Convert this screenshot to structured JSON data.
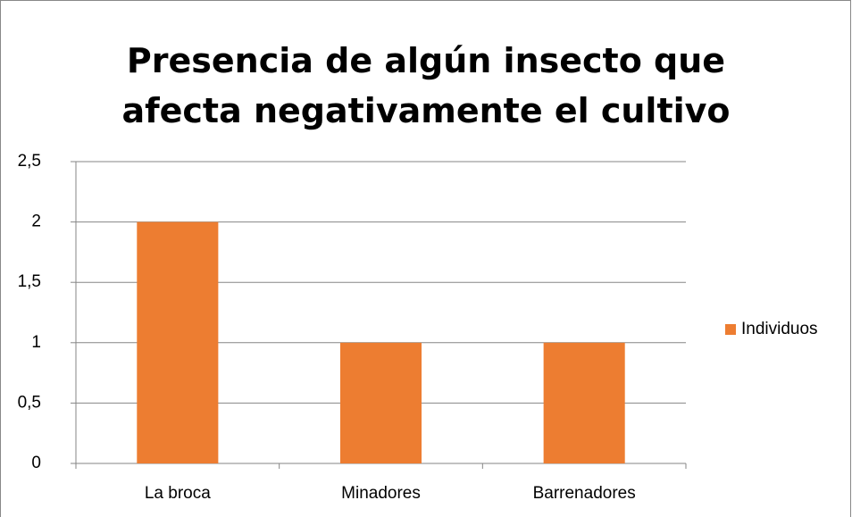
{
  "chart_data": {
    "type": "bar",
    "title": "Presencia de algún insecto que afecta negativamente el cultivo",
    "categories": [
      "La broca",
      "Minadores",
      "Barrenadores"
    ],
    "series": [
      {
        "name": "Individuos",
        "color": "#ed7d31",
        "values": [
          2,
          1,
          1
        ]
      }
    ],
    "ylim": [
      0,
      2.5
    ],
    "yticks": [
      0,
      {
        "value": 0.5,
        "label": "0,5"
      },
      1,
      {
        "value": 1.5,
        "label": "1,5"
      },
      2,
      {
        "value": 2.5,
        "label": "2,5"
      }
    ],
    "grid": true,
    "legend": "right"
  }
}
